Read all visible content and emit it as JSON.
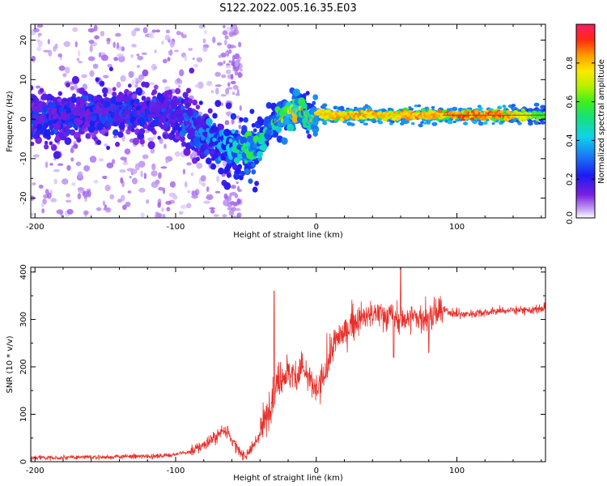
{
  "figure": {
    "title": "S122.2022.005.16.35.E03"
  },
  "chart_data": [
    {
      "type": "heatmap",
      "title": "",
      "xlabel": "Height of straight line (km)",
      "ylabel": "Frequency (Hz)",
      "xlim": [
        -203,
        163
      ],
      "ylim": [
        -25,
        24
      ],
      "xticks": [
        -200,
        -100,
        0,
        100
      ],
      "xtick_labels": [
        "-200",
        "-100",
        "0",
        "100"
      ],
      "yticks": [
        -20,
        -10,
        0,
        10,
        20
      ],
      "ytick_labels": [
        "-20",
        "-10",
        "0",
        "10",
        "20"
      ],
      "ridge": {
        "x": [
          -200,
          -180,
          -160,
          -140,
          -120,
          -100,
          -90,
          -80,
          -70,
          -60,
          -50,
          -45,
          -40,
          -30,
          -20,
          -15,
          -10,
          -5,
          0,
          10,
          30,
          50,
          70,
          90,
          100,
          130,
          163
        ],
        "frequency": [
          0,
          0.5,
          1.5,
          2,
          1.5,
          2,
          -1,
          -4,
          -6,
          -6.5,
          -7.5,
          -8,
          -6,
          -1,
          1.5,
          2.5,
          2.5,
          -1,
          1.5,
          1,
          1,
          1,
          1,
          1,
          1,
          1,
          1
        ],
        "amplitude": [
          0.25,
          0.25,
          0.25,
          0.28,
          0.25,
          0.3,
          0.3,
          0.35,
          0.4,
          0.45,
          0.55,
          0.6,
          0.5,
          0.55,
          0.7,
          0.8,
          0.6,
          0.5,
          0.75,
          0.8,
          0.85,
          0.8,
          0.85,
          0.85,
          0.9,
          0.9,
          0.6
        ]
      },
      "colorbar": {
        "label": "Normalized spectral amplitude",
        "range": [
          0,
          1
        ],
        "ticks": [
          0.0,
          0.2,
          0.4,
          0.6,
          0.8
        ],
        "tick_labels": [
          "0.0",
          "0.2",
          "0.4",
          "0.6",
          "0.8"
        ]
      }
    },
    {
      "type": "line",
      "title": "",
      "xlabel": "Height of straight line (km)",
      "ylabel": "SNR (10 * v/v)",
      "xlim": [
        -203,
        163
      ],
      "ylim": [
        0,
        410
      ],
      "xticks": [
        -200,
        -100,
        0,
        100
      ],
      "xtick_labels": [
        "-200",
        "-100",
        "0",
        "100"
      ],
      "yticks": [
        0,
        100,
        200,
        300,
        400
      ],
      "ytick_labels": [
        "0",
        "100",
        "200",
        "300",
        "400"
      ],
      "series": [
        {
          "name": "SNR",
          "color": "#e8302a",
          "trend": {
            "x": [
              -203,
              -150,
              -110,
              -90,
              -80,
              -70,
              -65,
              -60,
              -55,
              -50,
              -45,
              -40,
              -35,
              -30,
              -25,
              -20,
              -15,
              -10,
              -5,
              0,
              5,
              10,
              15,
              20,
              25,
              30,
              40,
              50,
              60,
              70,
              80,
              90,
              100,
              120,
              140,
              163
            ],
            "y": [
              8,
              10,
              12,
              20,
              35,
              55,
              70,
              45,
              20,
              15,
              30,
              60,
              100,
              150,
              180,
              190,
              180,
              200,
              170,
              150,
              170,
              230,
              260,
              270,
              290,
              300,
              310,
              310,
              300,
              305,
              300,
              320,
              310,
              315,
              320,
              320
            ]
          },
          "spikes": [
            {
              "x": -30,
              "y": 360
            },
            {
              "x": -63,
              "y": 75
            },
            {
              "x": 60,
              "y": 410
            },
            {
              "x": 55,
              "y": 220
            },
            {
              "x": 80,
              "y": 230
            }
          ]
        }
      ]
    }
  ],
  "colors": {
    "line": "#e8302a",
    "axis": "#000000",
    "background": "#ffffff"
  }
}
